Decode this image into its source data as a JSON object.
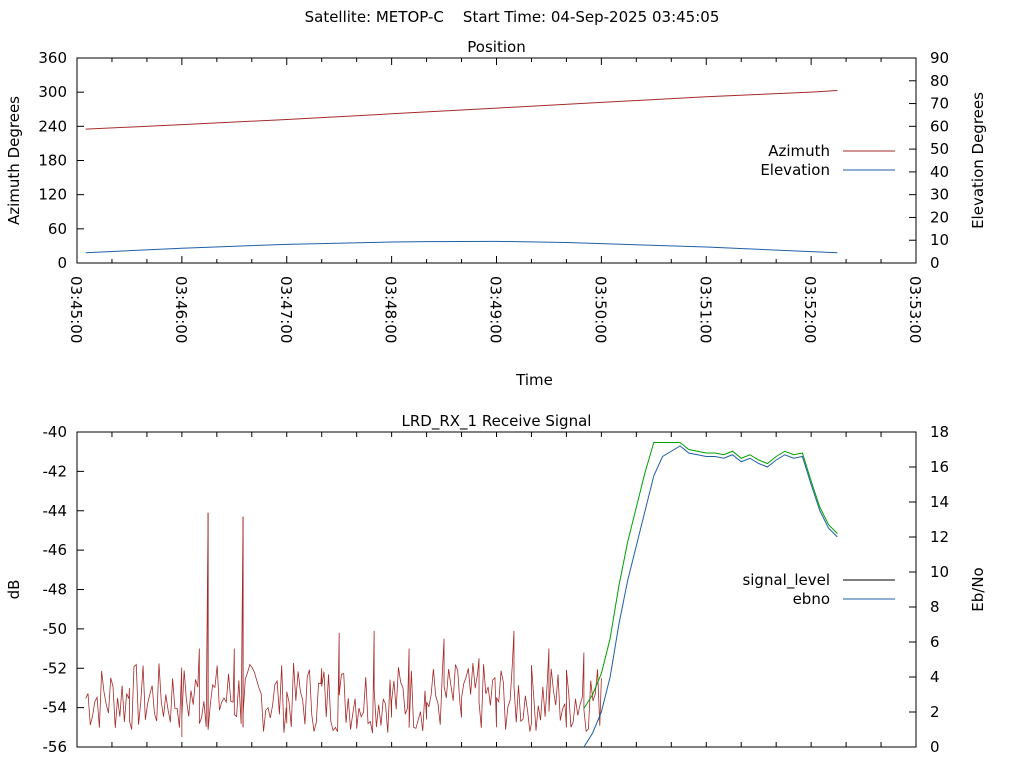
{
  "header": {
    "title": "Satellite: METOP-C    Start Time: 04-Sep-2025 03:45:05"
  },
  "colors": {
    "azimuth": "#a52a2a",
    "elevation": "#1f5fa6",
    "signal_level": "#a52a2a",
    "ebno_outline": "#1f5fa6",
    "ebno_fill": "#00a000",
    "axis": "#000000",
    "legend_signal_level": "#000000"
  },
  "chart_data": [
    {
      "type": "line",
      "title": "Position",
      "xlabel": "Time",
      "ylabel": "Azimuth Degrees",
      "y2label": "Elevation Degrees",
      "xticks": [
        "03:45:00",
        "03:46:00",
        "03:47:00",
        "03:48:00",
        "03:49:00",
        "03:50:00",
        "03:51:00",
        "03:52:00",
        "03:53:00"
      ],
      "xlim": [
        0,
        480
      ],
      "ylim": [
        0,
        360
      ],
      "y2lim": [
        0,
        90
      ],
      "yticks": [
        0,
        60,
        120,
        180,
        240,
        300,
        360
      ],
      "y2ticks": [
        0,
        10,
        20,
        30,
        40,
        50,
        60,
        70,
        80,
        90
      ],
      "legend": "right",
      "series": [
        {
          "name": "Azimuth",
          "axis": "left",
          "x": [
            5,
            60,
            120,
            180,
            240,
            300,
            360,
            420,
            435
          ],
          "y": [
            235,
            243,
            252,
            262,
            272,
            282,
            292,
            300,
            303
          ]
        },
        {
          "name": "Elevation",
          "axis": "right",
          "x": [
            5,
            60,
            120,
            180,
            200,
            240,
            280,
            300,
            360,
            420,
            435
          ],
          "y": [
            4.5,
            6.5,
            8.2,
            9.2,
            9.4,
            9.5,
            9.0,
            8.5,
            7.0,
            5.0,
            4.5
          ]
        }
      ]
    },
    {
      "type": "line",
      "title": "LRD_RX_1 Receive Signal",
      "xlabel": "",
      "ylabel": "dB",
      "y2label": "Eb/No",
      "ylim": [
        -56,
        -40
      ],
      "y2lim": [
        0,
        18
      ],
      "yticks": [
        -56,
        -54,
        -52,
        -50,
        -48,
        -46,
        -44,
        -42,
        -40
      ],
      "y2ticks": [
        0,
        2,
        4,
        6,
        8,
        10,
        12,
        14,
        16,
        18
      ],
      "legend": "right",
      "series": [
        {
          "name": "signal_level",
          "axis": "left",
          "note": "noisy between about -55.5 and -50 dB, with spikes near -44 dB",
          "x": [
            5,
            30,
            60,
            70,
            75,
            90,
            95,
            120,
            140,
            150,
            160,
            170,
            180,
            190,
            200,
            210,
            220,
            230,
            240,
            250,
            260,
            270,
            280,
            290,
            300
          ],
          "y": [
            -55.5,
            -53,
            -55.5,
            -51,
            -44.1,
            -51,
            -44.3,
            -54.8,
            -52,
            -50.2,
            -54.8,
            -50.1,
            -54.5,
            -51,
            -54.6,
            -50.5,
            -54.5,
            -51.5,
            -55,
            -50.1,
            -54.8,
            -51,
            -55,
            -51.2,
            -52.5
          ]
        },
        {
          "name": "ebno",
          "axis": "right",
          "x": [
            290,
            295,
            300,
            305,
            310,
            315,
            320,
            325,
            330,
            335,
            340,
            345,
            350,
            355,
            360,
            365,
            370,
            375,
            380,
            385,
            390,
            395,
            400,
            405,
            410,
            415,
            420,
            425,
            430,
            435
          ],
          "y": [
            0,
            0.8,
            2.0,
            4.0,
            7.0,
            9.5,
            11.5,
            13.5,
            15.5,
            16.6,
            16.9,
            17.2,
            16.8,
            16.7,
            16.6,
            16.6,
            16.5,
            16.7,
            16.3,
            16.5,
            16.2,
            16.0,
            16.4,
            16.7,
            16.5,
            16.6,
            15.0,
            13.5,
            12.5,
            12.0
          ]
        }
      ]
    }
  ]
}
